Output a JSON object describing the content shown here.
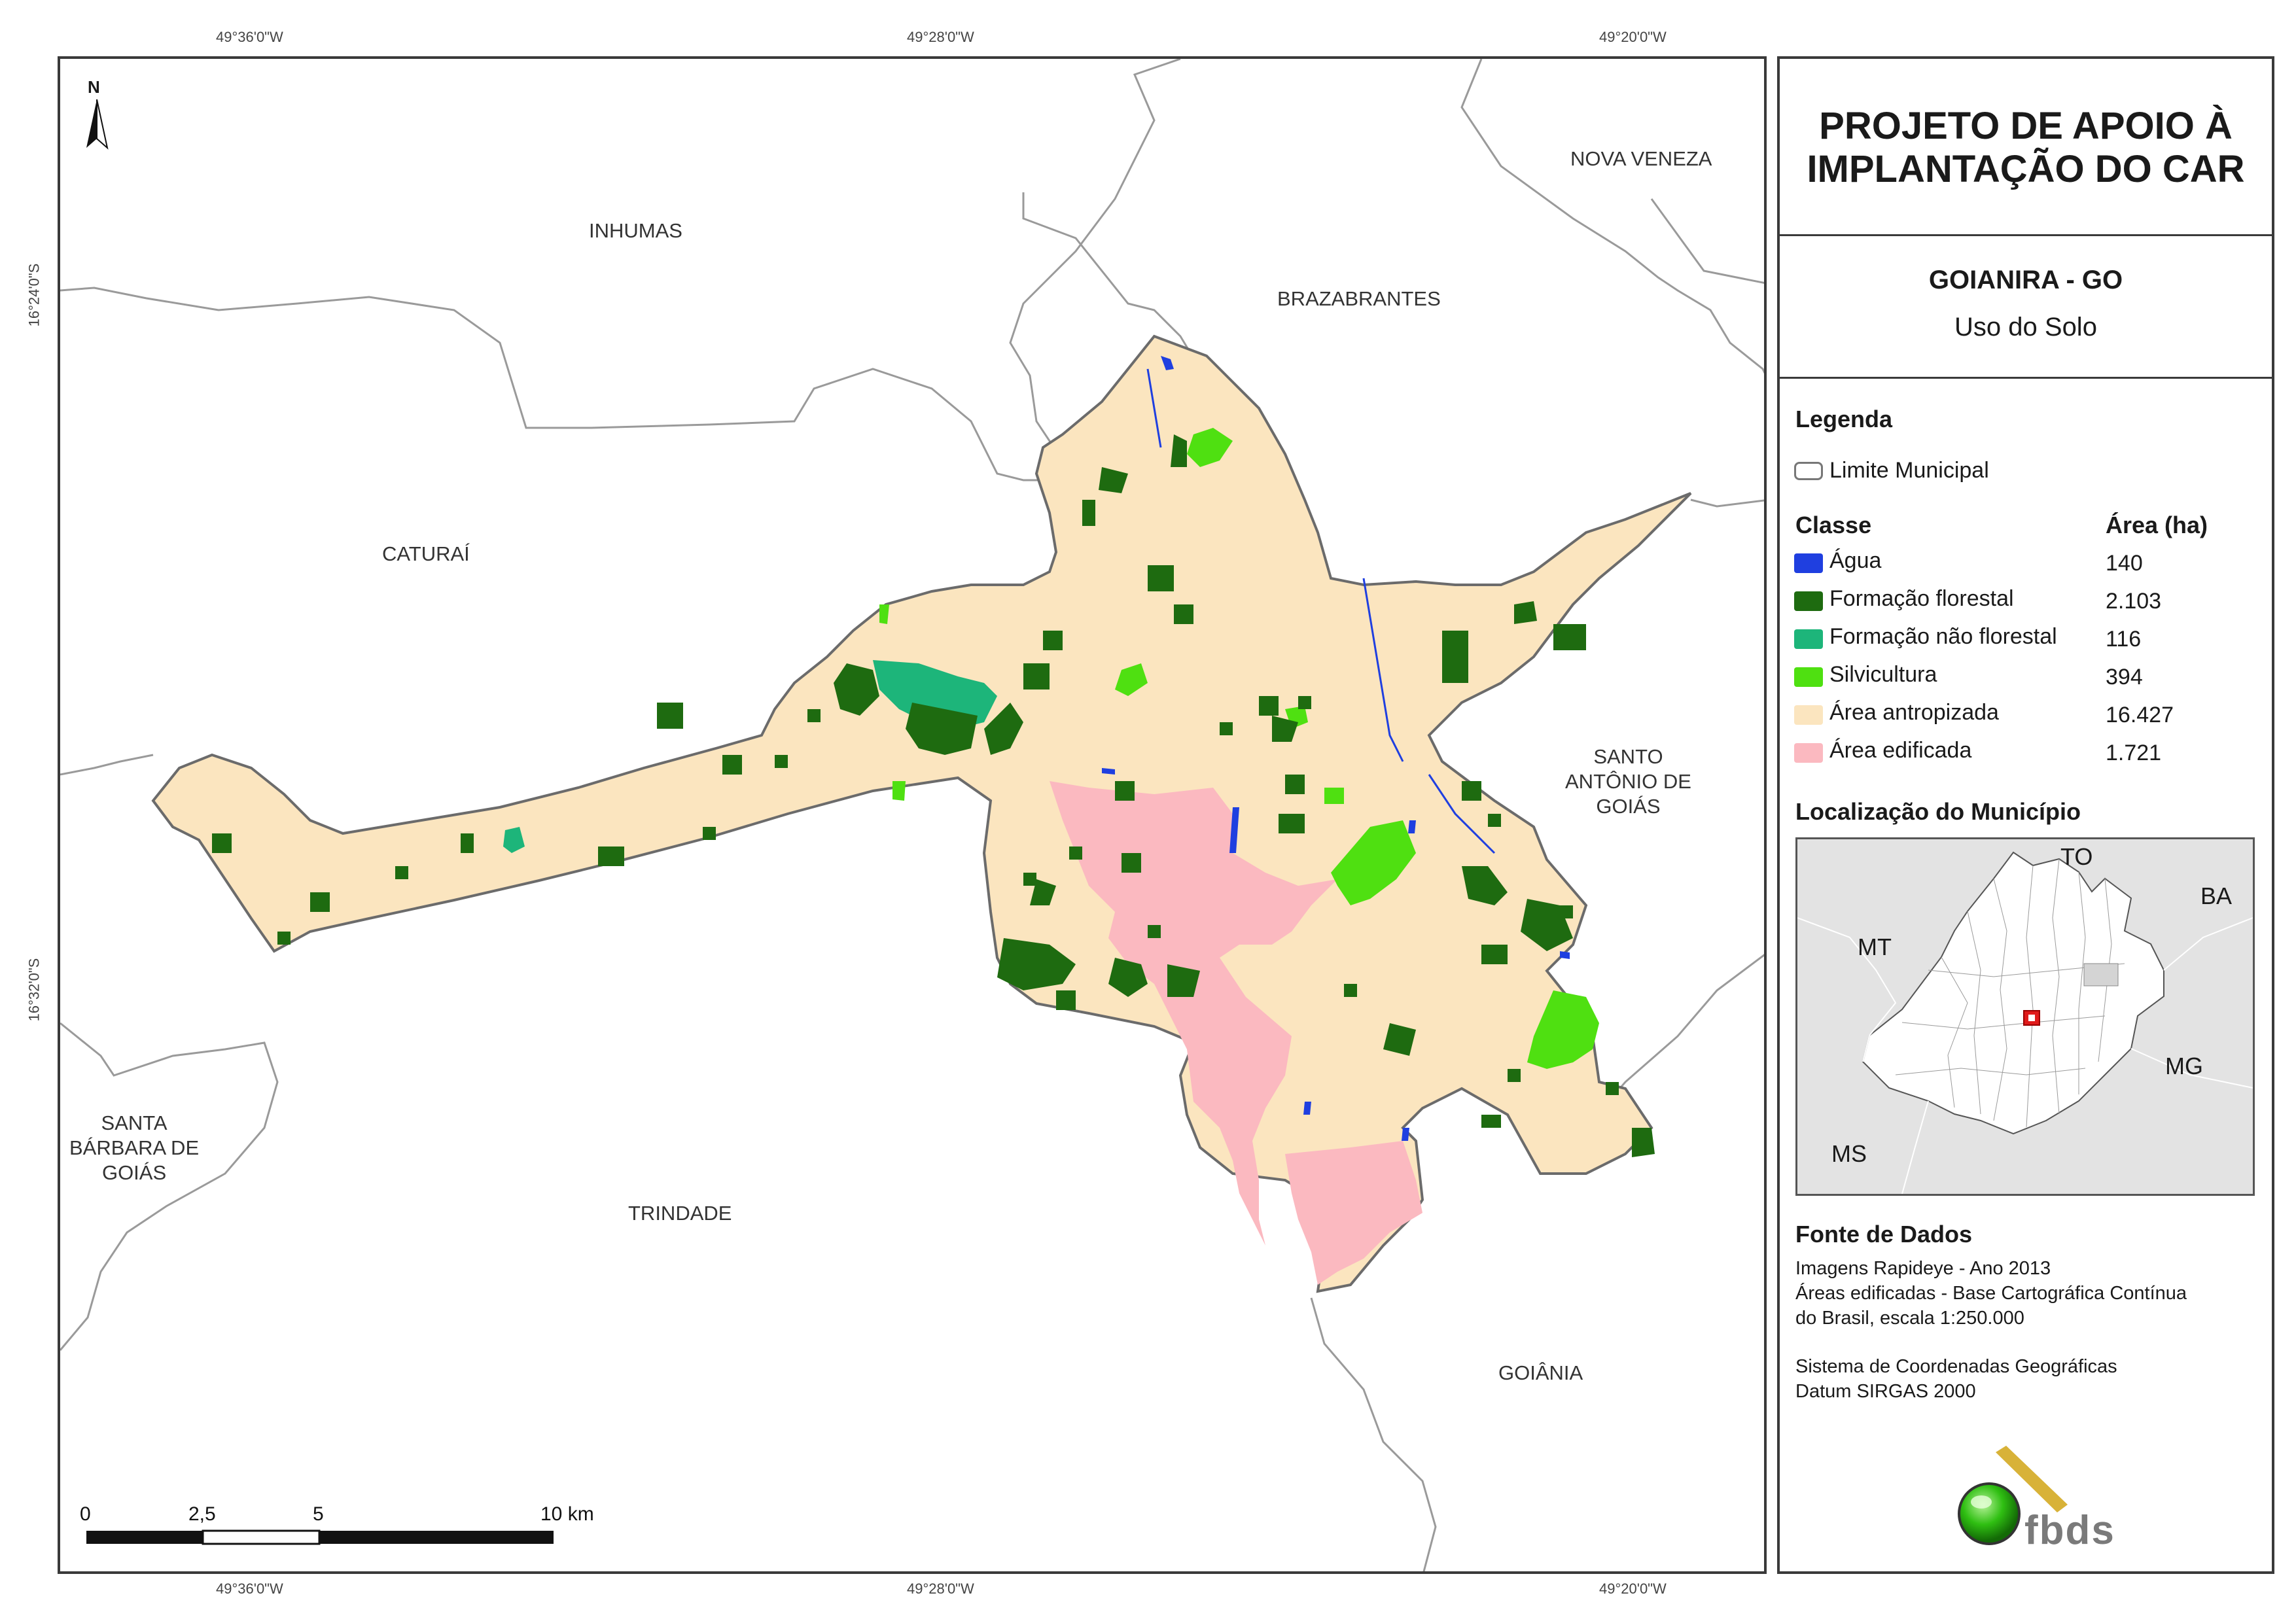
{
  "coordinates": {
    "top": [
      "49°36'0\"W",
      "49°28'0\"W",
      "49°20'0\"W"
    ],
    "bottom": [
      "49°36'0\"W",
      "49°28'0\"W",
      "49°20'0\"W"
    ],
    "left": [
      "16°24'0\"S",
      "16°32'0\"S"
    ]
  },
  "north_arrow": "N",
  "municipalities": {
    "inhumas": "INHUMAS",
    "nova_veneza": "NOVA VENEZA",
    "brazabrantes": "BRAZABRANTES",
    "caturai": "CATURAÍ",
    "santo_antonio": [
      "SANTO",
      "ANTÔNIO DE",
      "GOIÁS"
    ],
    "santa_barbara": [
      "SANTA",
      "BÁRBARA DE",
      "GOIÁS"
    ],
    "trindade": "TRINDADE",
    "goiania": "GOIÂNIA"
  },
  "scale_bar": {
    "labels": [
      "0",
      "2,5",
      "5",
      "10 km"
    ]
  },
  "panel": {
    "title_line1": "PROJETO DE APOIO À",
    "title_line2": "IMPLANTAÇÃO DO CAR",
    "municipality": "GOIANIRA - GO",
    "subtitle": "Uso do Solo",
    "legend_heading": "Legenda",
    "boundary_label": "Limite Municipal",
    "class_heading": "Classe",
    "area_heading": "Área (ha)",
    "classes": [
      {
        "name": "Água",
        "area": "140",
        "color": "#1f3fe0"
      },
      {
        "name": "Formação florestal",
        "area": "2.103",
        "color": "#1e6b10"
      },
      {
        "name": "Formação não florestal",
        "area": "116",
        "color": "#1db57a"
      },
      {
        "name": "Silvicultura",
        "area": "394",
        "color": "#4fe011"
      },
      {
        "name": "Área antropizada",
        "area": "16.427",
        "color": "#fbe5bf"
      },
      {
        "name": "Área edificada",
        "area": "1.721",
        "color": "#fbb9c0"
      }
    ],
    "location_heading": "Localização do Município",
    "inset_labels": {
      "to": "TO",
      "ba": "BA",
      "mt": "MT",
      "mg": "MG",
      "ms": "MS"
    },
    "source_heading": "Fonte de Dados",
    "source_lines": [
      "Imagens Rapideye - Ano 2013",
      "Áreas edificadas - Base Cartográfica Contínua",
      "do Brasil, escala 1:250.000"
    ],
    "crs_lines": [
      "Sistema de Coordenadas Geográficas",
      "Datum SIRGAS 2000"
    ],
    "logo_text": "fbds"
  }
}
